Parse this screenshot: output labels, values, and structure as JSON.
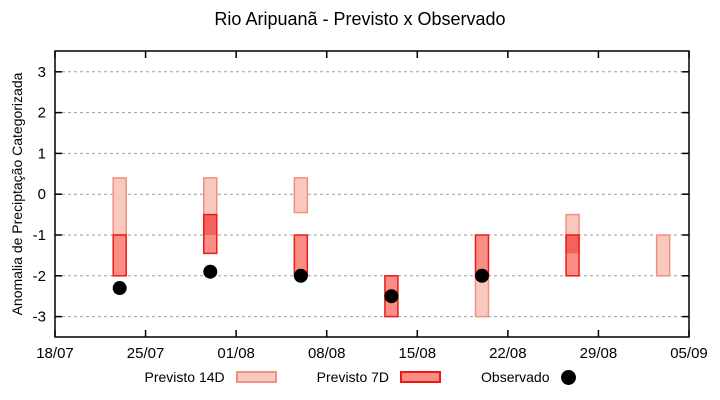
{
  "title": "Rio Aripuanã - Previsto x Observado",
  "colors": {
    "forecast14_fill": "#f9c8bf",
    "forecast14_border": "#f0907f",
    "forecast7_fill": "#fa8d86",
    "forecast7_border": "#ec1b17",
    "overlap_fill": "#f4625c",
    "observed": "#000000",
    "grid": "#9e9e9e",
    "axis": "#000000",
    "background": "#ffffff"
  },
  "chart_data": {
    "type": "range-bar+scatter",
    "title": "Rio Aripuanã - Previsto x Observado",
    "xlabel": "",
    "ylabel": "Anomalia de Preciptação Categorizada",
    "grid": true,
    "legend_position": "below",
    "x_axis_start_label": "18/07",
    "x_tick_labels": [
      "18/07",
      "25/07",
      "01/08",
      "08/08",
      "15/08",
      "22/08",
      "29/08",
      "05/09"
    ],
    "x_tick_days": [
      0,
      7,
      14,
      21,
      28,
      35,
      42,
      49
    ],
    "xlim_days": [
      0,
      49
    ],
    "y_ticks": [
      3,
      2,
      1,
      0,
      -1,
      -2,
      -3
    ],
    "ylim": [
      -3.5,
      3.51
    ],
    "series": [
      {
        "name": "Previsto 14D",
        "type": "range-bar",
        "points": [
          {
            "day": 5,
            "high": 0.4,
            "low": -1.0
          },
          {
            "day": 12,
            "high": 0.4,
            "low": -1.0
          },
          {
            "day": 19,
            "high": 0.4,
            "low": -0.45
          },
          {
            "day": 33,
            "high": -2.0,
            "low": -3.0
          },
          {
            "day": 40,
            "high": -0.5,
            "low": -1.45
          },
          {
            "day": 47,
            "high": -1.0,
            "low": -2.0
          }
        ]
      },
      {
        "name": "Previsto 7D",
        "type": "range-bar",
        "points": [
          {
            "day": 5,
            "high": -1.0,
            "low": -2.0
          },
          {
            "day": 12,
            "high": -0.5,
            "low": -1.45
          },
          {
            "day": 19,
            "high": -1.0,
            "low": -2.0
          },
          {
            "day": 26,
            "high": -2.0,
            "low": -3.0
          },
          {
            "day": 33,
            "high": -1.0,
            "low": -2.0
          },
          {
            "day": 40,
            "high": -1.0,
            "low": -2.0
          }
        ]
      },
      {
        "name": "Observado",
        "type": "scatter",
        "points": [
          {
            "day": 5,
            "value": -2.3
          },
          {
            "day": 12,
            "value": -1.9
          },
          {
            "day": 19,
            "value": -2.0
          },
          {
            "day": 26,
            "value": -2.5
          },
          {
            "day": 33,
            "value": -2.0
          }
        ]
      }
    ]
  },
  "legend": {
    "items": [
      {
        "label": "Previsto 14D"
      },
      {
        "label": "Previsto 7D"
      },
      {
        "label": "Observado"
      }
    ]
  }
}
